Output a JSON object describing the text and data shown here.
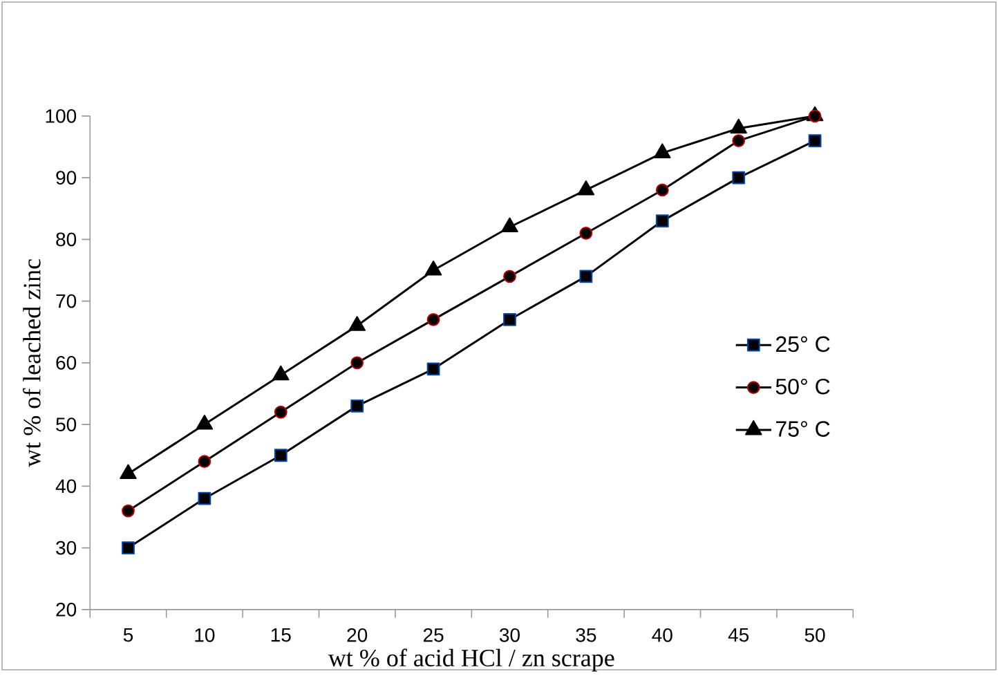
{
  "chart_data": {
    "type": "line",
    "xlabel": "wt % of acid HCl / zn scrape",
    "ylabel": "wt % of leached zinc",
    "categories": [
      "5",
      "10",
      "15",
      "20",
      "25",
      "30",
      "35",
      "40",
      "45",
      "50"
    ],
    "series": [
      {
        "name": "25° C",
        "color": "#000000",
        "marker": "square",
        "values": [
          30,
          38,
          45,
          53,
          59,
          67,
          74,
          83,
          90,
          96
        ]
      },
      {
        "name": "50° C",
        "color": "#000000",
        "marker": "circle",
        "values": [
          36,
          44,
          52,
          60,
          67,
          74,
          81,
          88,
          96,
          100
        ]
      },
      {
        "name": "75° C",
        "color": "#000000",
        "marker": "triangle",
        "values": [
          42,
          50,
          58,
          66,
          75,
          82,
          88,
          94,
          98,
          100
        ]
      }
    ],
    "ylim": [
      20,
      100
    ],
    "yticks": [
      20,
      30,
      40,
      50,
      60,
      70,
      80,
      90,
      100
    ],
    "grid": false,
    "legend": "right",
    "line_style": "solid"
  }
}
